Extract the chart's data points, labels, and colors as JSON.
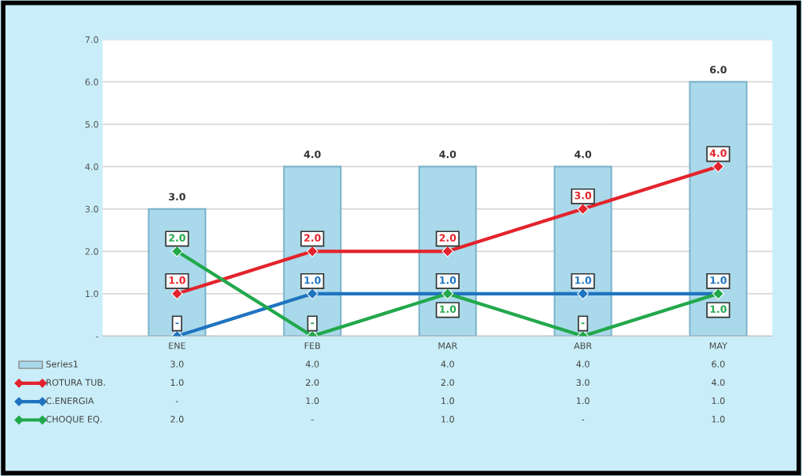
{
  "chart_data": {
    "type": "bar",
    "categories": [
      "ENE",
      "FEB",
      "MAR",
      "ABR",
      "MAY"
    ],
    "series": [
      {
        "name": "Series1",
        "color": "#a9d9ea",
        "values": [
          3,
          4,
          4,
          4,
          6
        ],
        "value_labels": [
          "3.0",
          "4.0",
          "4.0",
          "4.0",
          "6.0"
        ]
      },
      {
        "name": "ROTURA TUB.",
        "type": "line",
        "color": "#e3232c",
        "values": [
          1,
          2,
          2,
          3,
          4
        ],
        "value_labels": [
          "1.0",
          "2.0",
          "2.0",
          "3.0",
          "4.0"
        ]
      },
      {
        "name": "C.ENERGIA",
        "type": "line",
        "color": "#1f74c0",
        "values": [
          0,
          1,
          1,
          1,
          1
        ],
        "value_labels": [
          "-",
          "1.0",
          "1.0",
          "1.0",
          "1.0"
        ]
      },
      {
        "name": "CHOQUE EQ.",
        "type": "line",
        "color": "#22a84c",
        "values": [
          2,
          0,
          1,
          0,
          1
        ],
        "value_labels": [
          "2.0",
          "-",
          "1.0",
          "-",
          "1.0"
        ]
      }
    ],
    "ylim": [
      0,
      7
    ],
    "yticks": [
      {
        "value": 0,
        "label": "-"
      },
      {
        "value": 1,
        "label": "1.0"
      },
      {
        "value": 2,
        "label": "2.0"
      },
      {
        "value": 3,
        "label": "3.0"
      },
      {
        "value": 4,
        "label": "4.0"
      },
      {
        "value": 5,
        "label": "5.0"
      },
      {
        "value": 6,
        "label": "6.0"
      },
      {
        "value": 7,
        "label": "7.0"
      }
    ],
    "grid": "y",
    "marker": "diamond",
    "line_style": "solid",
    "legend": "bottom"
  }
}
